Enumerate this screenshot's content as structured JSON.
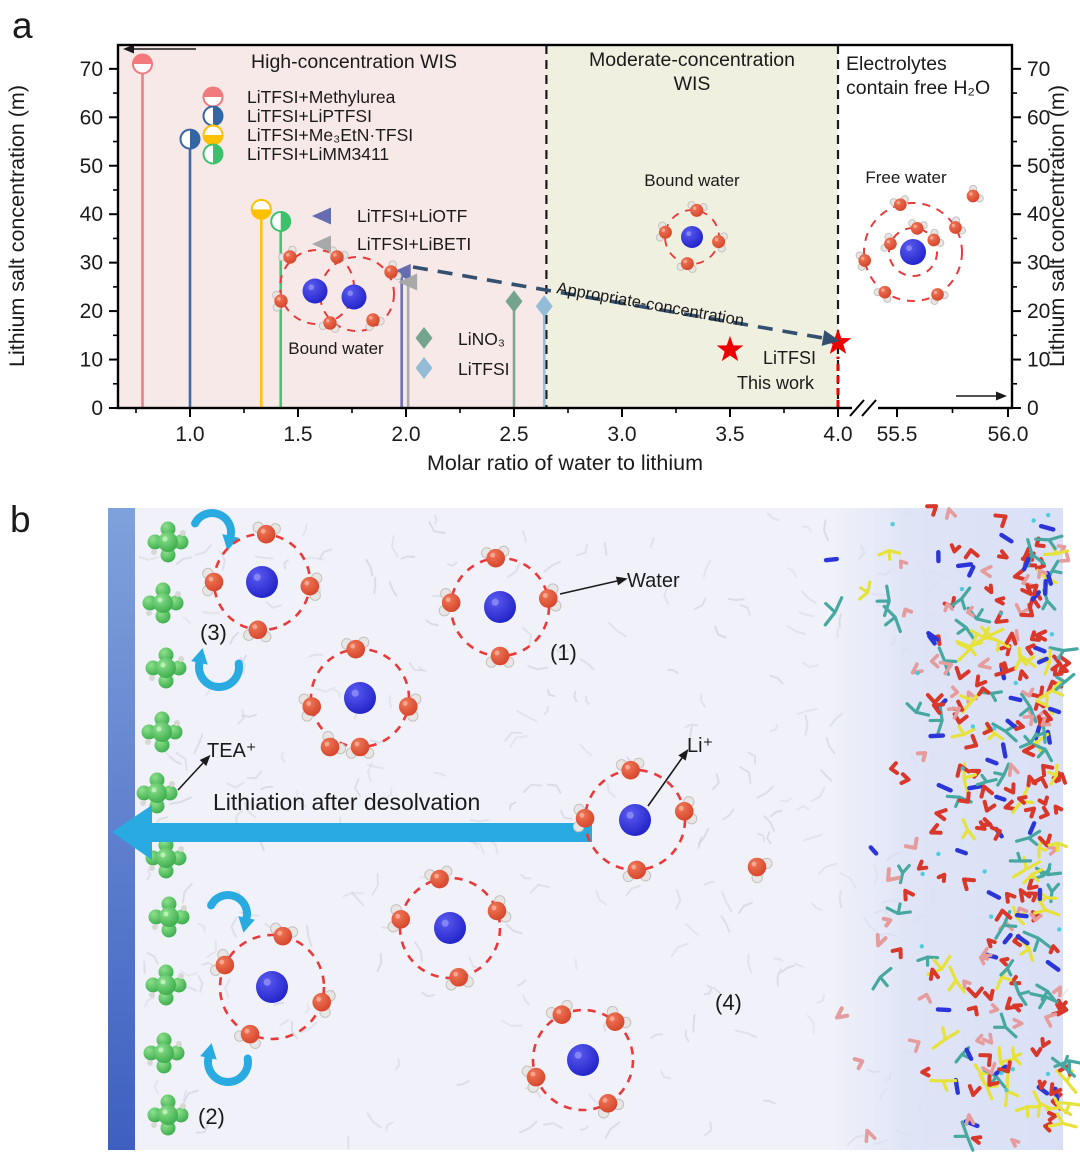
{
  "panel_a": {
    "label": "a",
    "chart_data": {
      "type": "scatter",
      "title": "",
      "x_axis": {
        "label": "Molar ratio of water to lithium",
        "tick_values": [
          1.0,
          1.5,
          2.0,
          2.5,
          3.0,
          3.5,
          4.0,
          55.5,
          56.0
        ],
        "tick_labels": [
          "1.0",
          "1.5",
          "2.0",
          "2.5",
          "3.0",
          "3.5",
          "4.0",
          "55.5",
          "56.0"
        ],
        "minor_ticks": [
          0.75,
          1.25,
          1.75,
          2.25,
          2.75,
          3.25,
          3.75,
          55.75
        ],
        "break_between": [
          4.0,
          55.5
        ]
      },
      "y_axis": {
        "label": "Lithium salt concentration (m)",
        "label_right": "Lithium salt concentration (m)",
        "tick_values": [
          0,
          10,
          20,
          30,
          40,
          50,
          60,
          70
        ],
        "minor_ticks": [
          5,
          15,
          25,
          35,
          45,
          55,
          65
        ],
        "range": [
          0,
          75
        ]
      },
      "regions": [
        {
          "label": "High-concentration WIS",
          "title_lines": [
            "High-concentration WIS"
          ],
          "x_start": 0.67,
          "x_end": 2.65,
          "color": "#F8E9E9"
        },
        {
          "label": "Moderate-concentration WIS",
          "title_lines": [
            "Moderate-concentration",
            "WIS"
          ],
          "x_start": 2.65,
          "x_end": 4.0,
          "color": "#F0F0E0"
        },
        {
          "label": "Electrolytes contain free H₂O",
          "title_lines": [
            "Electrolytes",
            "contain free H₂O"
          ],
          "x_start": 4.0,
          "x_end": 56.2,
          "color": "#FFFFFF"
        }
      ],
      "series": [
        {
          "name": "LiTFSI+Methylurea",
          "x": 0.78,
          "y": 71,
          "marker": "half-circle",
          "half": "top",
          "color": "#F2797C",
          "stem": true
        },
        {
          "name": "LiTFSI+LiPTFSI",
          "x": 1.0,
          "y": 55.5,
          "marker": "half-circle",
          "half": "right",
          "color": "#3465A4",
          "stem": true
        },
        {
          "name": "LiTFSI+Me₃EtN·TFSI",
          "x": 1.33,
          "y": 41,
          "marker": "half-circle",
          "half": "bottom",
          "color": "#FFC000",
          "stem": true
        },
        {
          "name": "LiTFSI+LiMM3411",
          "x": 1.42,
          "y": 38.5,
          "marker": "half-circle",
          "half": "right",
          "color": "#3EC16C",
          "stem": true
        },
        {
          "name": "LiTFSI+LiOTF",
          "x": 1.98,
          "y": 28,
          "marker": "triangle-left",
          "color": "#666CB0",
          "stem": true
        },
        {
          "name": "LiTFSI+LiBETI",
          "x": 2.01,
          "y": 26,
          "marker": "triangle-left",
          "color": "#A8A8A8",
          "stem": true
        },
        {
          "name": "LiNO₃",
          "x": 2.5,
          "y": 22,
          "marker": "diamond",
          "color": "#74A58C",
          "stem": true
        },
        {
          "name": "LiTFSI",
          "x": 2.64,
          "y": 21,
          "marker": "diamond",
          "color": "#93BCD8",
          "stem": true
        },
        {
          "name": "LiTFSI (this work)",
          "x": 3.5,
          "y": 12,
          "marker": "star",
          "color": "#EE0000",
          "stem": false
        },
        {
          "name": "LiTFSI (this work)",
          "x": 4.0,
          "y": 13.5,
          "marker": "star",
          "color": "#EE0000",
          "stem": "dashed-red"
        }
      ],
      "annotations": {
        "trend_arrow_label": "Appropriate-concentration",
        "bound_water": "Bound water",
        "free_water": "Free water",
        "this_work_series": "LiTFSI",
        "this_work_note": "This work"
      },
      "legend_position": "inside top-left"
    }
  },
  "panel_b": {
    "label": "b",
    "annotations": {
      "water": "Water",
      "lithium_ion": "Li⁺",
      "tea_cation": "TEA⁺",
      "step1": "(1)",
      "step2": "(2)",
      "step3": "(3)",
      "step4": "(4)",
      "process_arrow": "Lithiation after desolvation"
    },
    "colors": {
      "electrode_top": "#7FA2DC",
      "electrode_bottom": "#3E5FC0",
      "tea_green": "#3DBE46",
      "arrow_cyan": "#29ABE2",
      "li_blue": "#2230D0",
      "water_oxygen": "#DC4733",
      "solvation_ring": "#E93A3A",
      "md_red": "#D8372A",
      "md_pink": "#E59C9C",
      "md_yellow": "#E6E23B",
      "md_teal": "#46A8A0",
      "md_blue": "#2B35D8"
    }
  }
}
